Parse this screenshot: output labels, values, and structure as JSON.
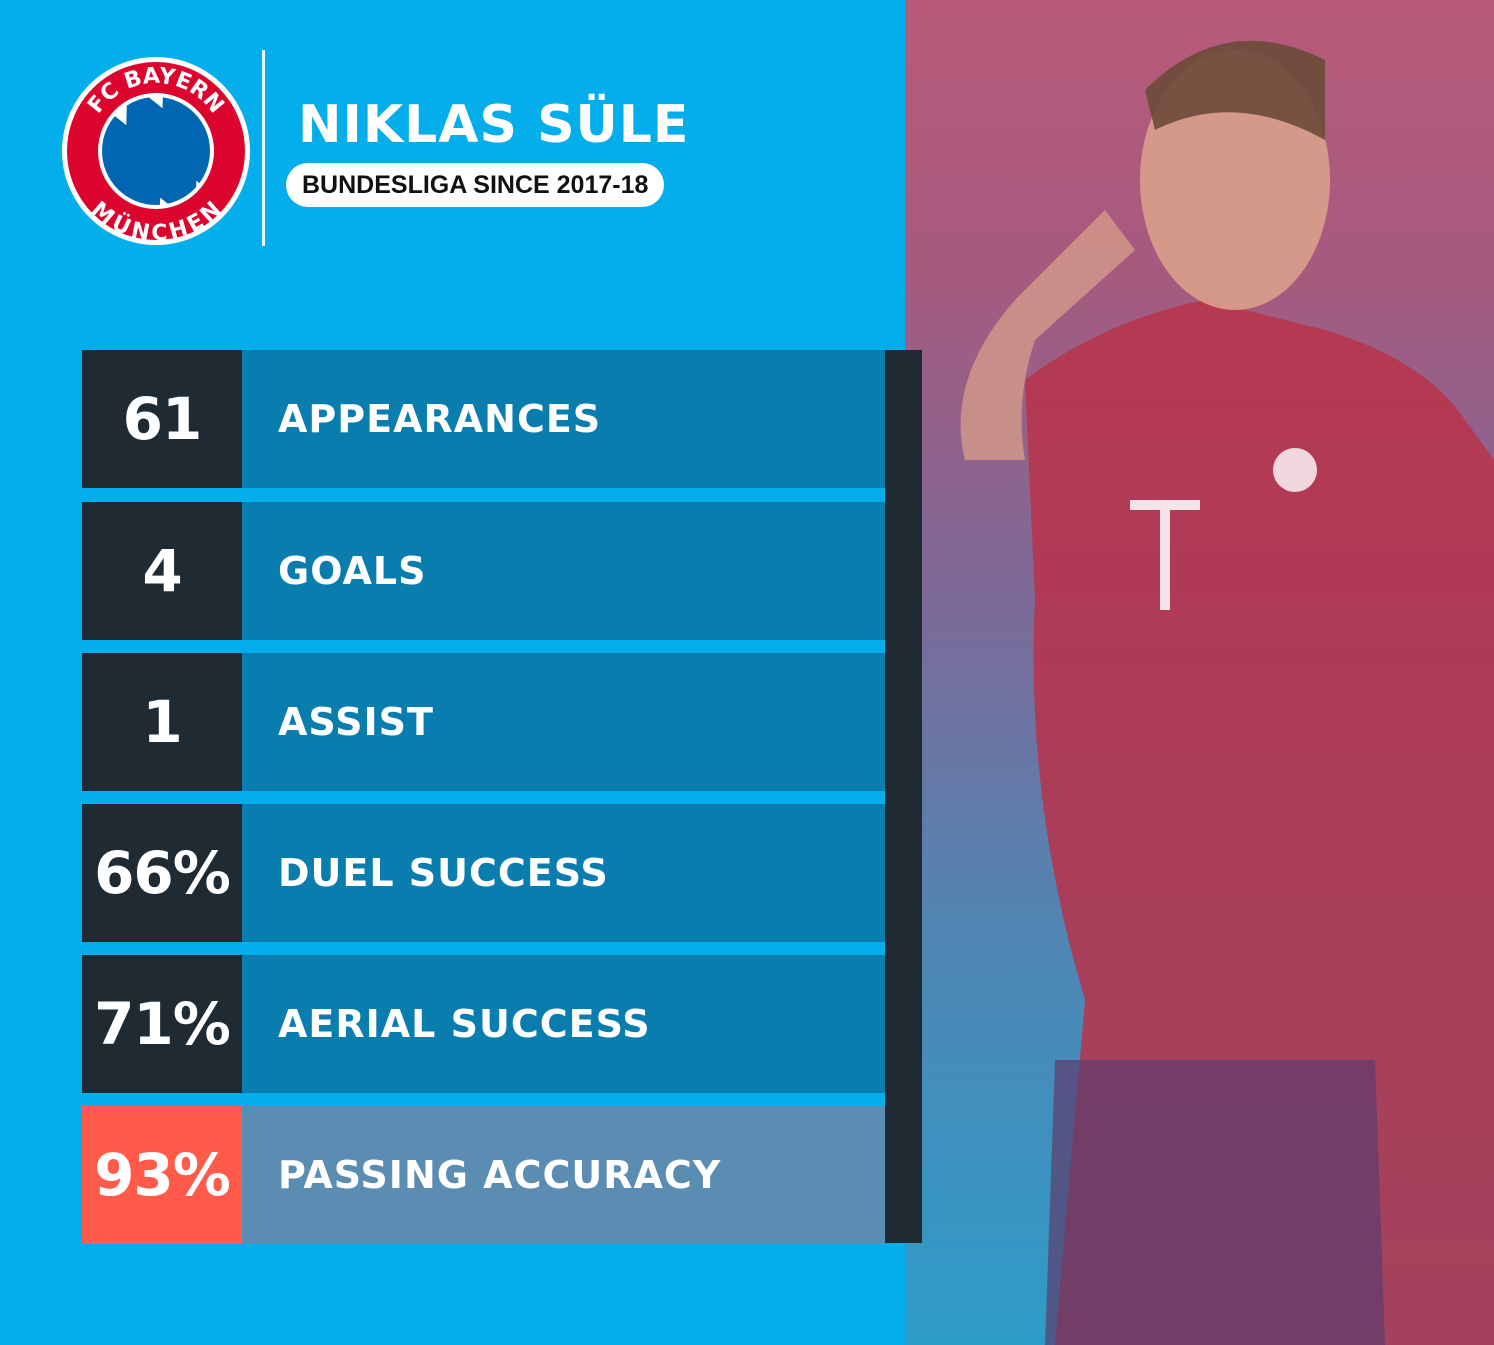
{
  "header": {
    "club_logo_text": [
      "FC BAYERN",
      "MÜNCHEN"
    ],
    "player_name": "NIKLAS SÜLE",
    "subtitle": "BUNDESLIGA SINCE 2017-18"
  },
  "stats": [
    {
      "value": "61",
      "label": "APPEARANCES"
    },
    {
      "value": "4",
      "label": "GOALS"
    },
    {
      "value": "1",
      "label": "ASSIST"
    },
    {
      "value": "66%",
      "label": "DUEL SUCCESS"
    },
    {
      "value": "71%",
      "label": "AERIAL SUCCESS"
    },
    {
      "value": "93%",
      "label": "PASSING ACCURACY",
      "highlight": true
    }
  ],
  "colors": {
    "background": "#04aeea",
    "number_box": "#1f2a33",
    "label_box": "#0a7daf",
    "highlight_number": "#ff5a4a",
    "highlight_label": "#5b8cb1",
    "club_red": "#dc052d",
    "club_blue": "#0066b2"
  }
}
